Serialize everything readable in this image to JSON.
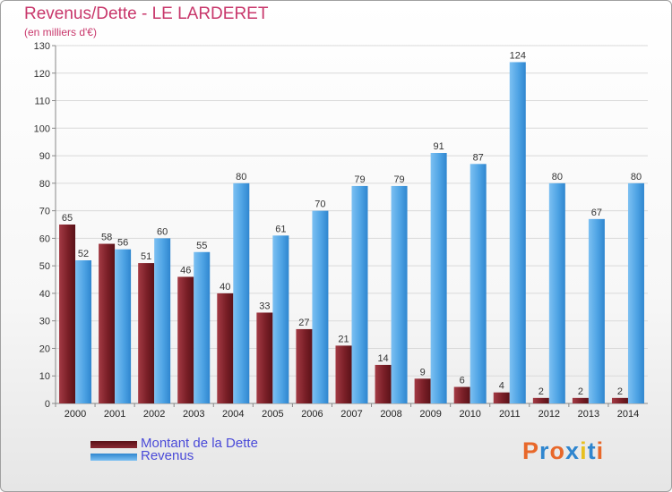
{
  "chart_data": {
    "type": "bar",
    "title": "Revenus/Dette - LE LARDERET",
    "subtitle": "(en milliers d'€)",
    "categories": [
      "2000",
      "2001",
      "2002",
      "2003",
      "2004",
      "2005",
      "2006",
      "2007",
      "2008",
      "2009",
      "2010",
      "2011",
      "2012",
      "2013",
      "2014"
    ],
    "series": [
      {
        "name": "Montant de la Dette",
        "values": [
          65,
          58,
          51,
          46,
          40,
          33,
          27,
          21,
          14,
          9,
          6,
          4,
          2,
          2,
          2
        ],
        "color": "#7a1f27"
      },
      {
        "name": "Revenus",
        "values": [
          52,
          56,
          60,
          55,
          80,
          61,
          70,
          79,
          79,
          91,
          87,
          124,
          80,
          67,
          80
        ],
        "color": "#4ea3e4"
      }
    ],
    "ylim": [
      0,
      130
    ],
    "yticks": [
      0,
      10,
      20,
      30,
      40,
      50,
      60,
      70,
      80,
      90,
      100,
      110,
      120,
      130
    ],
    "grid": true,
    "legend_position": "bottom-left"
  },
  "logo": {
    "text": "Proxiti"
  }
}
